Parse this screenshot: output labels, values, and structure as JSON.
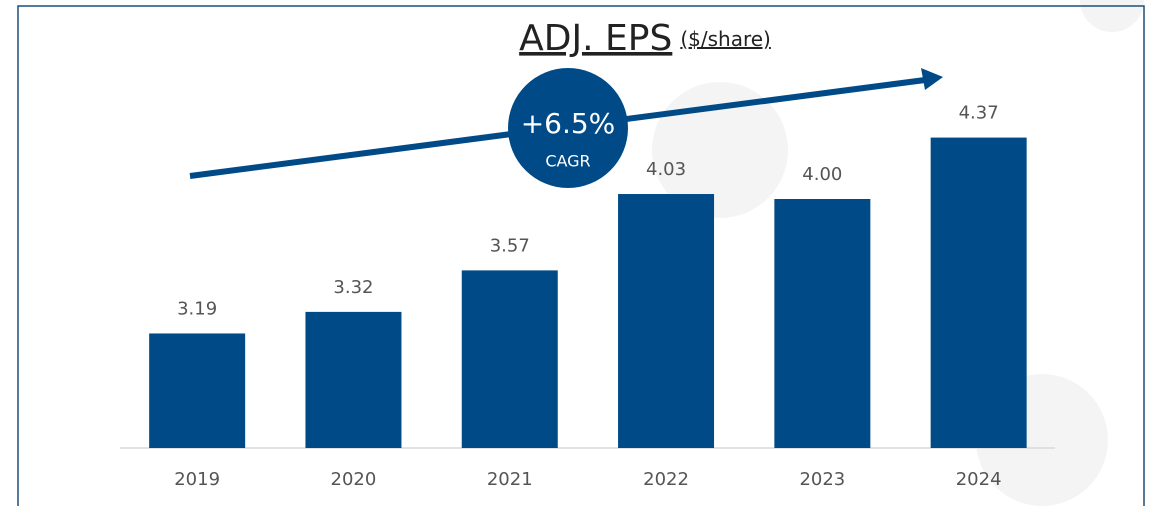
{
  "chart_data": {
    "type": "bar",
    "title": "ADJ. EPS",
    "subtitle": "($/share)",
    "annotations": [
      "+6.5%",
      "CAGR"
    ],
    "categories": [
      "2019",
      "2020",
      "2021",
      "2022",
      "2023",
      "2024"
    ],
    "values": [
      3.19,
      3.32,
      3.57,
      4.03,
      4.0,
      4.37
    ],
    "value_labels": [
      "3.19",
      "3.32",
      "3.57",
      "4.03",
      "4.00",
      "4.37"
    ],
    "color": "#004b87",
    "ylim": [
      2.5,
      5
    ]
  }
}
